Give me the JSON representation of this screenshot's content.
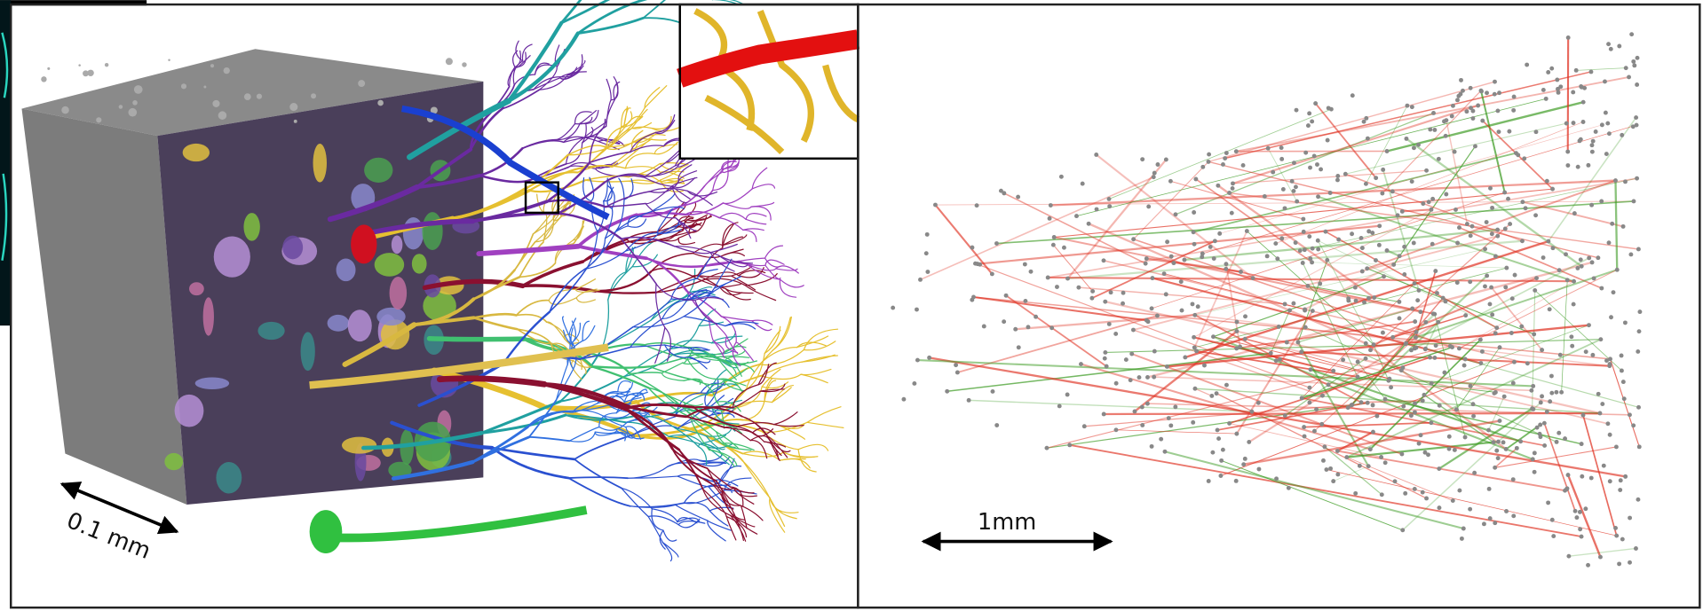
{
  "left_panel": {
    "scale_label": "0.1 mm"
  },
  "right_panel": {
    "scale_label": "1mm"
  }
}
